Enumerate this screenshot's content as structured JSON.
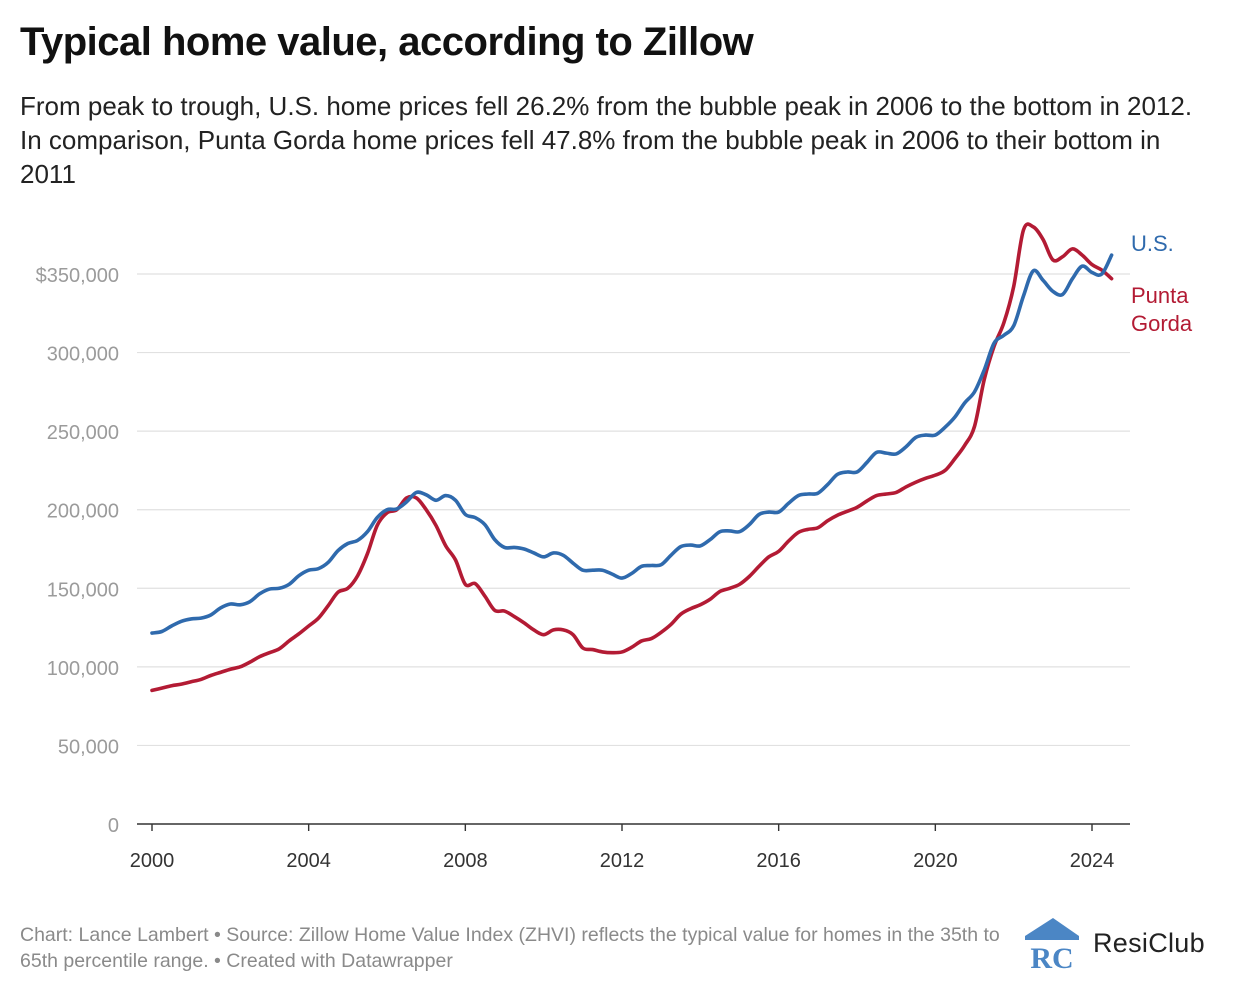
{
  "page": {
    "title": "Typical home value, according to Zillow",
    "subtitle": "From peak to trough, U.S. home prices fell 26.2% from the bubble peak in 2006 to the bottom in 2012. In comparison, Punta Gorda home prices fell 47.8% from the bubble peak in 2006 to their bottom in 2011",
    "footer": "Chart: Lance Lambert • Source: Zillow Home Value Index (ZHVI) reflects the typical value for homes in the 35th to 65th percentile range. • Created with Datawrapper",
    "brand": {
      "name": "ResiClub",
      "logo_letters": "RC",
      "logo_color": "#4b86c5"
    }
  },
  "chart_data": {
    "type": "line",
    "title": "Typical home value, according to Zillow",
    "xlabel": "",
    "ylabel": "",
    "xlim": [
      2000,
      2024.75
    ],
    "ylim": [
      0,
      385000
    ],
    "grid": true,
    "legend": "direct labels at line ends (right)",
    "x_ticks": [
      {
        "value": 2000,
        "label": "2000"
      },
      {
        "value": 2004,
        "label": "2004"
      },
      {
        "value": 2008,
        "label": "2008"
      },
      {
        "value": 2012,
        "label": "2012"
      },
      {
        "value": 2016,
        "label": "2016"
      },
      {
        "value": 2020,
        "label": "2020"
      },
      {
        "value": 2024,
        "label": "2024"
      }
    ],
    "y_ticks": [
      {
        "value": 0,
        "label": "0"
      },
      {
        "value": 50000,
        "label": "50,000"
      },
      {
        "value": 100000,
        "label": "100,000"
      },
      {
        "value": 150000,
        "label": "150,000"
      },
      {
        "value": 200000,
        "label": "200,000"
      },
      {
        "value": 250000,
        "label": "250,000"
      },
      {
        "value": 300000,
        "label": "300,000"
      },
      {
        "value": 350000,
        "label": "$350,000"
      }
    ],
    "series": [
      {
        "name": "U.S.",
        "color": "#2f6aad",
        "points": [
          [
            2000.0,
            121500
          ],
          [
            2000.25,
            122500
          ],
          [
            2000.5,
            126000
          ],
          [
            2000.75,
            129000
          ],
          [
            2001.0,
            130500
          ],
          [
            2001.25,
            131000
          ],
          [
            2001.5,
            133000
          ],
          [
            2001.75,
            137500
          ],
          [
            2002.0,
            140000
          ],
          [
            2002.25,
            139500
          ],
          [
            2002.5,
            141500
          ],
          [
            2002.75,
            146500
          ],
          [
            2003.0,
            149500
          ],
          [
            2003.25,
            150000
          ],
          [
            2003.5,
            152500
          ],
          [
            2003.75,
            158000
          ],
          [
            2004.0,
            161500
          ],
          [
            2004.25,
            162500
          ],
          [
            2004.5,
            166500
          ],
          [
            2004.75,
            174000
          ],
          [
            2005.0,
            178500
          ],
          [
            2005.25,
            180500
          ],
          [
            2005.5,
            186000
          ],
          [
            2005.75,
            195000
          ],
          [
            2006.0,
            200000
          ],
          [
            2006.25,
            200500
          ],
          [
            2006.5,
            205000
          ],
          [
            2006.75,
            211000
          ],
          [
            2007.0,
            209500
          ],
          [
            2007.25,
            206000
          ],
          [
            2007.5,
            209000
          ],
          [
            2007.75,
            206000
          ],
          [
            2008.0,
            197000
          ],
          [
            2008.25,
            195000
          ],
          [
            2008.5,
            190500
          ],
          [
            2008.75,
            181000
          ],
          [
            2009.0,
            176000
          ],
          [
            2009.25,
            176000
          ],
          [
            2009.5,
            175000
          ],
          [
            2009.75,
            172500
          ],
          [
            2010.0,
            170000
          ],
          [
            2010.25,
            172500
          ],
          [
            2010.5,
            171000
          ],
          [
            2010.75,
            166000
          ],
          [
            2011.0,
            161500
          ],
          [
            2011.25,
            161500
          ],
          [
            2011.5,
            161500
          ],
          [
            2011.75,
            159000
          ],
          [
            2012.0,
            156500
          ],
          [
            2012.25,
            159500
          ],
          [
            2012.5,
            164000
          ],
          [
            2012.75,
            164500
          ],
          [
            2013.0,
            165000
          ],
          [
            2013.25,
            171000
          ],
          [
            2013.5,
            176500
          ],
          [
            2013.75,
            177500
          ],
          [
            2014.0,
            177000
          ],
          [
            2014.25,
            181000
          ],
          [
            2014.5,
            186000
          ],
          [
            2014.75,
            186500
          ],
          [
            2015.0,
            186000
          ],
          [
            2015.25,
            190500
          ],
          [
            2015.5,
            197000
          ],
          [
            2015.75,
            198500
          ],
          [
            2016.0,
            198500
          ],
          [
            2016.25,
            204000
          ],
          [
            2016.5,
            209000
          ],
          [
            2016.75,
            210000
          ],
          [
            2017.0,
            210500
          ],
          [
            2017.25,
            216000
          ],
          [
            2017.5,
            222500
          ],
          [
            2017.75,
            224000
          ],
          [
            2018.0,
            224000
          ],
          [
            2018.25,
            230000
          ],
          [
            2018.5,
            236500
          ],
          [
            2018.75,
            236000
          ],
          [
            2019.0,
            235500
          ],
          [
            2019.25,
            240000
          ],
          [
            2019.5,
            246000
          ],
          [
            2019.75,
            247500
          ],
          [
            2020.0,
            247500
          ],
          [
            2020.25,
            252500
          ],
          [
            2020.5,
            259000
          ],
          [
            2020.75,
            268000
          ],
          [
            2021.0,
            275000
          ],
          [
            2021.25,
            289000
          ],
          [
            2021.5,
            306000
          ],
          [
            2021.75,
            311000
          ],
          [
            2022.0,
            317000
          ],
          [
            2022.25,
            336000
          ],
          [
            2022.5,
            352000
          ],
          [
            2022.75,
            346000
          ],
          [
            2023.0,
            339000
          ],
          [
            2023.25,
            337000
          ],
          [
            2023.5,
            347000
          ],
          [
            2023.75,
            355000
          ],
          [
            2024.0,
            351000
          ],
          [
            2024.25,
            350000
          ],
          [
            2024.5,
            362000
          ]
        ]
      },
      {
        "name": "Punta Gorda",
        "label_lines": [
          "Punta",
          "Gorda"
        ],
        "color": "#b31b34",
        "points": [
          [
            2000.0,
            85000
          ],
          [
            2000.25,
            86500
          ],
          [
            2000.5,
            88000
          ],
          [
            2000.75,
            89000
          ],
          [
            2001.0,
            90500
          ],
          [
            2001.25,
            92000
          ],
          [
            2001.5,
            94500
          ],
          [
            2001.75,
            96500
          ],
          [
            2002.0,
            98500
          ],
          [
            2002.25,
            100000
          ],
          [
            2002.5,
            103000
          ],
          [
            2002.75,
            106500
          ],
          [
            2003.0,
            109000
          ],
          [
            2003.25,
            111500
          ],
          [
            2003.5,
            116500
          ],
          [
            2003.75,
            121000
          ],
          [
            2004.0,
            126000
          ],
          [
            2004.25,
            131000
          ],
          [
            2004.5,
            139000
          ],
          [
            2004.75,
            147500
          ],
          [
            2005.0,
            150000
          ],
          [
            2005.25,
            158000
          ],
          [
            2005.5,
            172000
          ],
          [
            2005.75,
            190000
          ],
          [
            2006.0,
            198000
          ],
          [
            2006.25,
            200000
          ],
          [
            2006.5,
            207500
          ],
          [
            2006.75,
            207500
          ],
          [
            2007.0,
            200000
          ],
          [
            2007.25,
            190000
          ],
          [
            2007.5,
            177000
          ],
          [
            2007.75,
            168000
          ],
          [
            2008.0,
            152500
          ],
          [
            2008.25,
            153000
          ],
          [
            2008.5,
            145000
          ],
          [
            2008.75,
            136000
          ],
          [
            2009.0,
            135500
          ],
          [
            2009.25,
            132000
          ],
          [
            2009.5,
            128000
          ],
          [
            2009.75,
            123500
          ],
          [
            2010.0,
            120500
          ],
          [
            2010.25,
            123500
          ],
          [
            2010.5,
            123500
          ],
          [
            2010.75,
            120500
          ],
          [
            2011.0,
            112000
          ],
          [
            2011.25,
            111000
          ],
          [
            2011.5,
            109500
          ],
          [
            2011.75,
            109000
          ],
          [
            2012.0,
            109500
          ],
          [
            2012.25,
            112500
          ],
          [
            2012.5,
            116500
          ],
          [
            2012.75,
            118000
          ],
          [
            2013.0,
            122000
          ],
          [
            2013.25,
            127000
          ],
          [
            2013.5,
            133500
          ],
          [
            2013.75,
            137000
          ],
          [
            2014.0,
            139500
          ],
          [
            2014.25,
            143000
          ],
          [
            2014.5,
            148000
          ],
          [
            2014.75,
            150000
          ],
          [
            2015.0,
            152500
          ],
          [
            2015.25,
            157500
          ],
          [
            2015.5,
            164000
          ],
          [
            2015.75,
            170000
          ],
          [
            2016.0,
            173500
          ],
          [
            2016.25,
            180000
          ],
          [
            2016.5,
            185500
          ],
          [
            2016.75,
            187500
          ],
          [
            2017.0,
            188500
          ],
          [
            2017.25,
            193000
          ],
          [
            2017.5,
            196500
          ],
          [
            2017.75,
            199000
          ],
          [
            2018.0,
            201500
          ],
          [
            2018.25,
            205500
          ],
          [
            2018.5,
            209000
          ],
          [
            2018.75,
            210000
          ],
          [
            2019.0,
            211000
          ],
          [
            2019.25,
            214500
          ],
          [
            2019.5,
            217500
          ],
          [
            2019.75,
            220000
          ],
          [
            2020.0,
            222000
          ],
          [
            2020.25,
            225000
          ],
          [
            2020.5,
            232500
          ],
          [
            2020.75,
            241000
          ],
          [
            2021.0,
            253000
          ],
          [
            2021.25,
            283000
          ],
          [
            2021.5,
            304000
          ],
          [
            2021.75,
            319000
          ],
          [
            2022.0,
            342000
          ],
          [
            2022.25,
            378000
          ],
          [
            2022.5,
            380000
          ],
          [
            2022.75,
            372000
          ],
          [
            2023.0,
            359000
          ],
          [
            2023.25,
            361000
          ],
          [
            2023.5,
            366000
          ],
          [
            2023.75,
            362000
          ],
          [
            2024.0,
            356000
          ],
          [
            2024.25,
            352500
          ],
          [
            2024.5,
            347000
          ]
        ]
      }
    ]
  }
}
